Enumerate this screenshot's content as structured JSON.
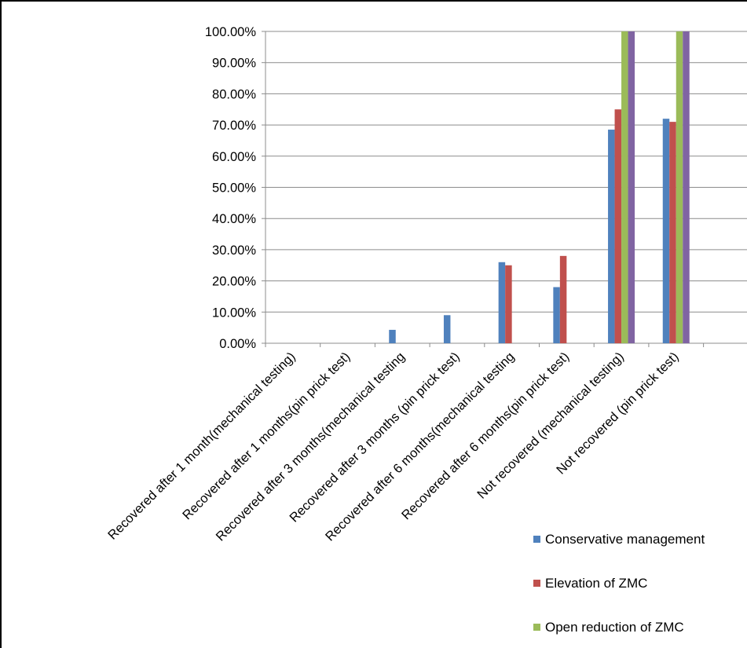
{
  "chart_data": {
    "type": "bar",
    "title": "",
    "xlabel": "",
    "ylabel": "",
    "ylim": [
      0,
      1
    ],
    "y_tick_labels": [
      "0.00%",
      "10.00%",
      "20.00%",
      "30.00%",
      "40.00%",
      "50.00%",
      "60.00%",
      "70.00%",
      "80.00%",
      "90.00%",
      "100.00%"
    ],
    "grid": "horizontal",
    "legend_position": "right",
    "categories": [
      "Recovered after 1 month(mechanical testing)",
      "Recovered after 1 months(pin prick test)",
      "Recovered after 3 months(mechanical testing",
      "Recovered after 3 months (pin prick test)",
      "Recovered after 6 months(mechanical testing",
      "Recovered  after 6 months(pin prick test)",
      "Not recovered (mechanical testing)",
      "Not recovered (pin prick test)",
      ""
    ],
    "series": [
      {
        "name": "Conservative management",
        "color": "#4F81BD",
        "values": [
          0,
          0,
          0.043,
          0.09,
          0.26,
          0.18,
          0.685,
          0.72,
          0
        ]
      },
      {
        "name": "Elevation of ZMC",
        "color": "#C0504D",
        "values": [
          0,
          0,
          0,
          0,
          0.25,
          0.28,
          0.75,
          0.71,
          0
        ]
      },
      {
        "name": "Open reduction of ZMC",
        "color": "#9BBB59",
        "values": [
          0,
          0,
          0,
          0,
          0,
          0,
          1.0,
          1.0,
          0
        ]
      },
      {
        "name": "",
        "color": "#8064A2",
        "values": [
          0,
          0,
          0,
          0,
          0,
          0,
          1.0,
          1.0,
          0
        ]
      }
    ]
  }
}
